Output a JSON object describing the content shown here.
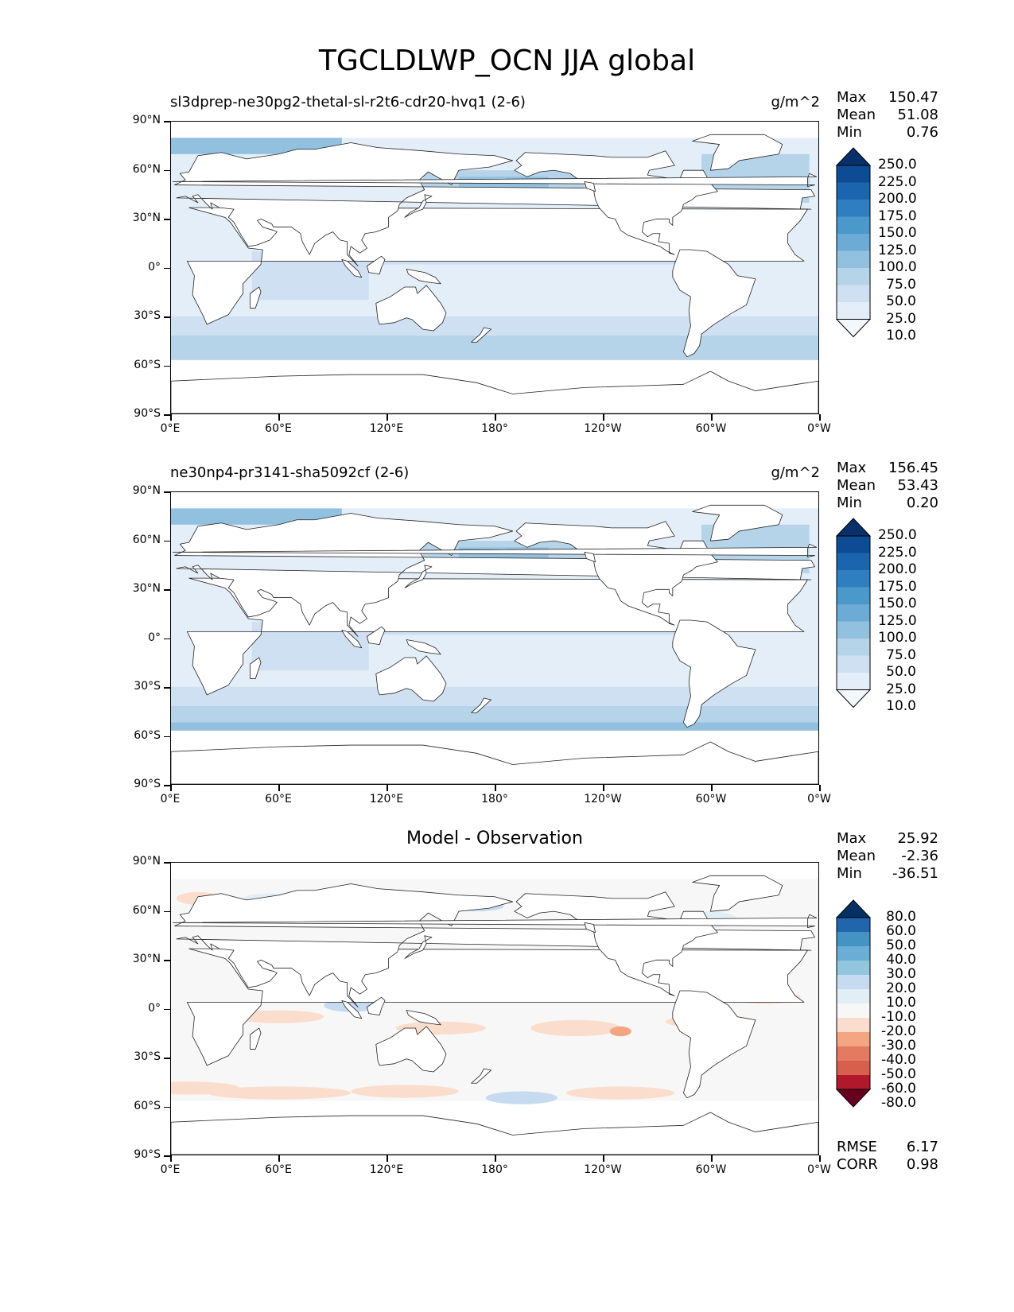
{
  "figure": {
    "title": "TGCLDLWP_OCN JJA global"
  },
  "chart_data": [
    {
      "type": "heatmap",
      "title": "sl3dprep-ne30pg2-thetal-sl-r2t6-cdr20-hvq1 (2-6)",
      "units": "g/m^2",
      "stats": {
        "max": "150.47",
        "mean": "51.08",
        "min": "0.76"
      },
      "x_ticks": [
        "0°E",
        "60°E",
        "120°E",
        "180°",
        "120°W",
        "60°W",
        "0°W"
      ],
      "y_ticks": [
        "90°N",
        "60°N",
        "30°N",
        "0°",
        "30°S",
        "60°S",
        "90°S"
      ],
      "xlim": [
        0,
        360
      ],
      "ylim": [
        -90,
        90
      ],
      "colorbar": {
        "levels": [
          "250.0",
          "225.0",
          "200.0",
          "175.0",
          "150.0",
          "125.0",
          "100.0",
          "75.0",
          "50.0",
          "25.0",
          "10.0"
        ],
        "colors": [
          "#08306b",
          "#0d4b94",
          "#1b65ae",
          "#2f7fc0",
          "#4b98cb",
          "#6cabd6",
          "#92c0df",
          "#b5d3e9",
          "#cfe0f2",
          "#e3eef8",
          "#f3f8fd"
        ],
        "extend": "both"
      }
    },
    {
      "type": "heatmap",
      "title": "ne30np4-pr3141-sha5092cf (2-6)",
      "units": "g/m^2",
      "stats": {
        "max": "156.45",
        "mean": "53.43",
        "min": "0.20"
      },
      "x_ticks": [
        "0°E",
        "60°E",
        "120°E",
        "180°",
        "120°W",
        "60°W",
        "0°W"
      ],
      "y_ticks": [
        "90°N",
        "60°N",
        "30°N",
        "0°",
        "30°S",
        "60°S",
        "90°S"
      ],
      "xlim": [
        0,
        360
      ],
      "ylim": [
        -90,
        90
      ],
      "colorbar": {
        "levels": [
          "250.0",
          "225.0",
          "200.0",
          "175.0",
          "150.0",
          "125.0",
          "100.0",
          "75.0",
          "50.0",
          "25.0",
          "10.0"
        ],
        "colors": [
          "#08306b",
          "#0d4b94",
          "#1b65ae",
          "#2f7fc0",
          "#4b98cb",
          "#6cabd6",
          "#92c0df",
          "#b5d3e9",
          "#cfe0f2",
          "#e3eef8",
          "#f3f8fd"
        ],
        "extend": "both"
      }
    },
    {
      "type": "heatmap",
      "title": "Model - Observation",
      "stats": {
        "max": "25.92",
        "mean": "-2.36",
        "min": "-36.51"
      },
      "rmse": "6.17",
      "corr": "0.98",
      "x_ticks": [
        "0°E",
        "60°E",
        "120°E",
        "180°",
        "120°W",
        "60°W",
        "0°W"
      ],
      "y_ticks": [
        "90°N",
        "60°N",
        "30°N",
        "0°",
        "30°S",
        "60°S",
        "90°S"
      ],
      "xlim": [
        0,
        360
      ],
      "ylim": [
        -90,
        90
      ],
      "colorbar": {
        "levels": [
          "80.0",
          "60.0",
          "50.0",
          "40.0",
          "30.0",
          "20.0",
          "10.0",
          "-10.0",
          "-20.0",
          "-30.0",
          "-40.0",
          "-50.0",
          "-60.0",
          "-80.0"
        ],
        "colors": [
          "#053061",
          "#2166ac",
          "#4393c3",
          "#6aaed6",
          "#92c5de",
          "#c6dbef",
          "#e2eef6",
          "#f7f7f7",
          "#fbddcd",
          "#f4a582",
          "#e57a62",
          "#d6604d",
          "#b2182b",
          "#67001f"
        ],
        "extend": "both"
      }
    }
  ],
  "stat_labels": {
    "max": "Max",
    "mean": "Mean",
    "min": "Min",
    "rmse": "RMSE",
    "corr": "CORR"
  }
}
